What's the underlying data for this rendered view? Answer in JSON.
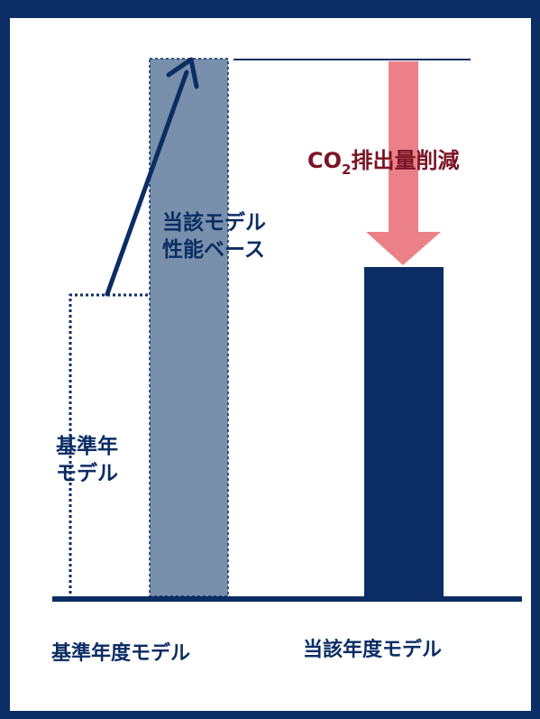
{
  "colors": {
    "navy": "#0b2d63",
    "steel": "#7890ac",
    "arrow_pink": "#ec8089",
    "dark_red": "#7a1424",
    "frame": "#0b2d63"
  },
  "labels": {
    "category_left": "基準年度モデル",
    "category_right": "当該年度モデル",
    "base_model_line1": "基準年",
    "base_model_line2": "モデル",
    "perf_base_line1": "当該モデル",
    "perf_base_line2": "性能ベース",
    "reduction_co": "CO",
    "reduction_sub": "2",
    "reduction_rest": "排出量削減"
  },
  "chart_data": {
    "type": "bar",
    "categories": [
      "基準年度モデル",
      "当該年度モデル"
    ],
    "series": [
      {
        "values": [
          0.46,
          1.0
        ]
      },
      {
        "values": [
          null,
          0.61
        ]
      }
    ],
    "annotations": [
      "基準年 モデル",
      "当該モデル 性能ベース",
      "CO2排出量削減"
    ]
  }
}
